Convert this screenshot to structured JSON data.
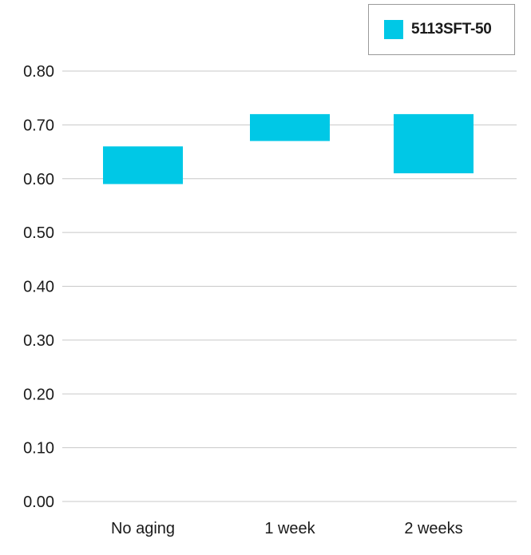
{
  "chart_data": {
    "type": "floating-bar",
    "categories": [
      "No aging",
      "1 week",
      "2 weeks"
    ],
    "series": [
      {
        "name": "5113SFT-50",
        "color": "#00c8e6",
        "ranges": [
          [
            0.59,
            0.66
          ],
          [
            0.67,
            0.72
          ],
          [
            0.61,
            0.72
          ]
        ]
      }
    ],
    "yticks": [
      "0.00",
      "0.10",
      "0.20",
      "0.30",
      "0.40",
      "0.50",
      "0.60",
      "0.70",
      "0.80"
    ],
    "ylim": [
      0,
      0.8
    ],
    "grid": true,
    "legend_position": "top-right"
  }
}
